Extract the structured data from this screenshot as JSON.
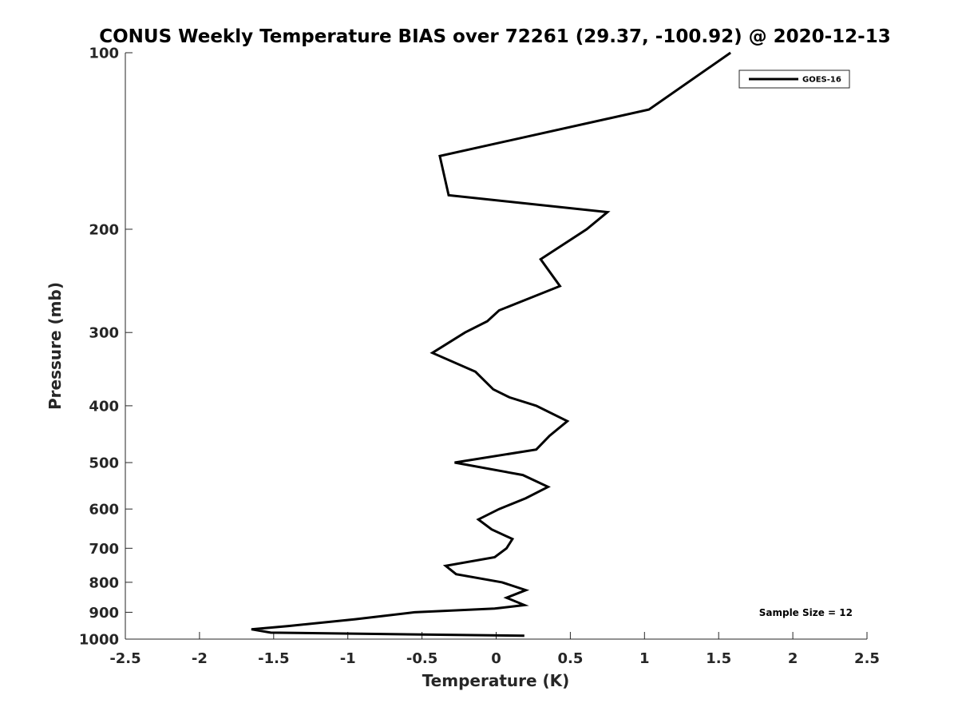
{
  "chart_data": {
    "type": "line",
    "title": "CONUS Weekly Temperature BIAS over 72261 (29.37, -100.92) @ 2020-12-13",
    "xlabel": "Temperature (K)",
    "ylabel": "Pressure (mb)",
    "xlim": [
      -2.5,
      2.5
    ],
    "ylim": [
      1000,
      100
    ],
    "y_scale": "log",
    "y_reversed": true,
    "grid": false,
    "legend_position": "top-right",
    "x_ticks": [
      -2.5,
      -2,
      -1.5,
      -1,
      -0.5,
      0,
      0.5,
      1,
      1.5,
      2,
      2.5
    ],
    "x_tick_labels": [
      "-2.5",
      "-2",
      "-1.5",
      "-1",
      "-0.5",
      "0",
      "0.5",
      "1",
      "1.5",
      "2",
      "2.5"
    ],
    "y_ticks": [
      100,
      200,
      300,
      400,
      500,
      600,
      700,
      800,
      900,
      1000
    ],
    "y_tick_labels": [
      "100",
      "200",
      "300",
      "400",
      "500",
      "600",
      "700",
      "800",
      "900",
      "1000"
    ],
    "series": [
      {
        "name": "GOES-16",
        "color": "#000000",
        "points": [
          {
            "x": 1.58,
            "y": 100
          },
          {
            "x": 1.03,
            "y": 125
          },
          {
            "x": -0.38,
            "y": 150
          },
          {
            "x": -0.32,
            "y": 175
          },
          {
            "x": 0.75,
            "y": 187
          },
          {
            "x": 0.61,
            "y": 200
          },
          {
            "x": 0.3,
            "y": 225
          },
          {
            "x": 0.43,
            "y": 250
          },
          {
            "x": 0.02,
            "y": 275
          },
          {
            "x": -0.06,
            "y": 287
          },
          {
            "x": -0.21,
            "y": 300
          },
          {
            "x": -0.43,
            "y": 325
          },
          {
            "x": -0.14,
            "y": 350
          },
          {
            "x": -0.02,
            "y": 375
          },
          {
            "x": 0.09,
            "y": 387
          },
          {
            "x": 0.27,
            "y": 400
          },
          {
            "x": 0.48,
            "y": 425
          },
          {
            "x": 0.36,
            "y": 450
          },
          {
            "x": 0.27,
            "y": 475
          },
          {
            "x": -0.28,
            "y": 500
          },
          {
            "x": 0.18,
            "y": 525
          },
          {
            "x": 0.35,
            "y": 550
          },
          {
            "x": 0.2,
            "y": 575
          },
          {
            "x": 0.02,
            "y": 600
          },
          {
            "x": -0.12,
            "y": 625
          },
          {
            "x": -0.03,
            "y": 650
          },
          {
            "x": 0.11,
            "y": 675
          },
          {
            "x": 0.07,
            "y": 700
          },
          {
            "x": -0.01,
            "y": 725
          },
          {
            "x": -0.34,
            "y": 750
          },
          {
            "x": -0.27,
            "y": 775
          },
          {
            "x": 0.04,
            "y": 800
          },
          {
            "x": 0.2,
            "y": 825
          },
          {
            "x": 0.07,
            "y": 850
          },
          {
            "x": 0.19,
            "y": 875
          },
          {
            "x": -0.01,
            "y": 887
          },
          {
            "x": -0.55,
            "y": 900
          },
          {
            "x": -0.95,
            "y": 925
          },
          {
            "x": -1.4,
            "y": 950
          },
          {
            "x": -1.65,
            "y": 962
          },
          {
            "x": -1.52,
            "y": 975
          },
          {
            "x": 0.19,
            "y": 987
          }
        ]
      }
    ],
    "legend": [
      {
        "label": "GOES-16",
        "color": "#000000"
      }
    ],
    "annotations": [
      {
        "text": "Sample Size = 12"
      }
    ]
  }
}
